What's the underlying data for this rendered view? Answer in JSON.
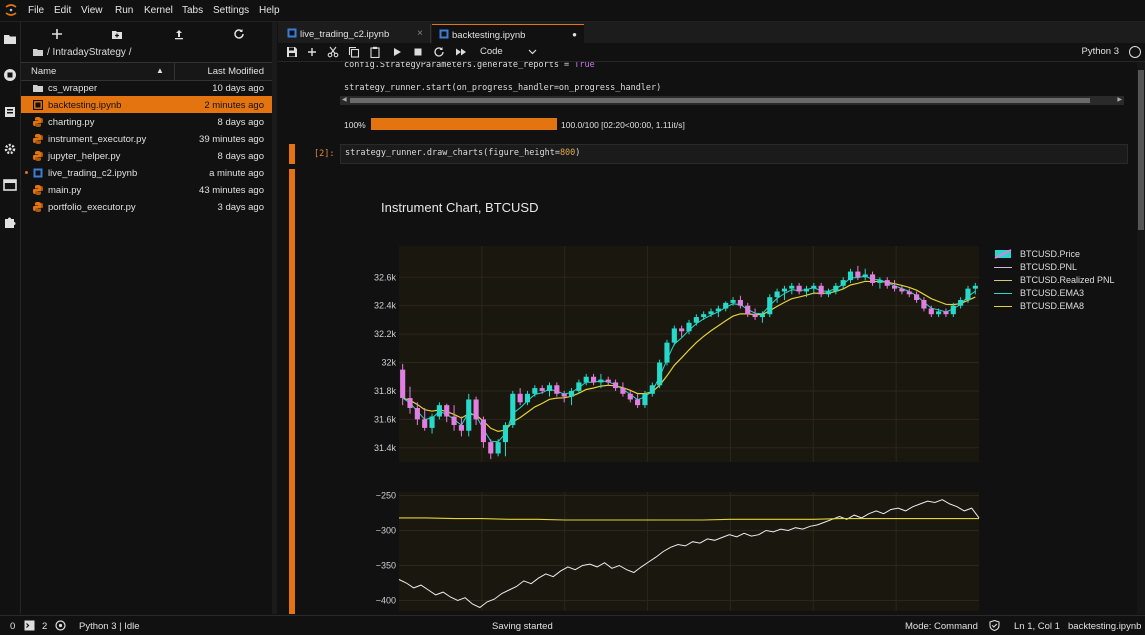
{
  "menubar": {
    "items": [
      "File",
      "Edit",
      "View",
      "Run",
      "Kernel",
      "Tabs",
      "Settings",
      "Help"
    ]
  },
  "activity_icons": [
    "folder-icon",
    "running-icon",
    "commands-icon",
    "property-inspector-icon",
    "tabs-icon",
    "extension-icon"
  ],
  "filebrowser": {
    "breadcrumb": "/ IntradayStrategy /",
    "col_name": "Name",
    "col_modified": "Last Modified",
    "files": [
      {
        "name": "cs_wrapper",
        "modified": "10 days ago",
        "kind": "folder"
      },
      {
        "name": "backtesting.ipynb",
        "modified": "2 minutes ago",
        "kind": "notebook",
        "selected": true
      },
      {
        "name": "charting.py",
        "modified": "8 days ago",
        "kind": "python"
      },
      {
        "name": "instrument_executor.py",
        "modified": "39 minutes ago",
        "kind": "python"
      },
      {
        "name": "jupyter_helper.py",
        "modified": "8 days ago",
        "kind": "python"
      },
      {
        "name": "live_trading_c2.ipynb",
        "modified": "a minute ago",
        "kind": "notebook",
        "running": true
      },
      {
        "name": "main.py",
        "modified": "43 minutes ago",
        "kind": "python"
      },
      {
        "name": "portfolio_executor.py",
        "modified": "3 days ago",
        "kind": "python"
      }
    ]
  },
  "tabs": [
    {
      "label": "live_trading_c2.ipynb",
      "close": "×",
      "active": false
    },
    {
      "label": "backtesting.ipynb",
      "close": "●",
      "active": true
    }
  ],
  "toolbar": {
    "cell_type": "Code",
    "kernel": "Python 3"
  },
  "cell1": {
    "line1_pre": "config.StrategyParameters.generate_reports = ",
    "line1_kw": "True",
    "line2": "strategy_runner.start(on_progress_handler=on_progress_handler)"
  },
  "progress": {
    "percent_label": "100%",
    "fraction": 1.0,
    "text": "100.0/100 [02:20<00:00,  1.11it/s]"
  },
  "cell2": {
    "prompt": "[2]:",
    "code_pre": "strategy_runner.draw_charts(figure_height=",
    "code_num": "800",
    "code_post": ")"
  },
  "chart_data": {
    "type": "line",
    "title": "Instrument Chart, BTCUSD",
    "panels": [
      {
        "name": "price",
        "yticks": [
          "32.6k",
          "32.4k",
          "32.2k",
          "32k",
          "31.8k",
          "31.6k",
          "31.4k"
        ],
        "ytick_values": [
          32600,
          32400,
          32200,
          32000,
          31800,
          31600,
          31400
        ],
        "ylim": [
          31300,
          32820
        ],
        "candles_ohlc": [
          [
            31950,
            31990,
            31700,
            31750
          ],
          [
            31750,
            31830,
            31640,
            31680
          ],
          [
            31680,
            31720,
            31560,
            31600
          ],
          [
            31600,
            31680,
            31520,
            31540
          ],
          [
            31540,
            31640,
            31500,
            31620
          ],
          [
            31620,
            31720,
            31600,
            31700
          ],
          [
            31700,
            31710,
            31580,
            31620
          ],
          [
            31620,
            31700,
            31520,
            31560
          ],
          [
            31560,
            31620,
            31480,
            31520
          ],
          [
            31520,
            31780,
            31480,
            31740
          ],
          [
            31740,
            31760,
            31560,
            31600
          ],
          [
            31600,
            31620,
            31400,
            31440
          ],
          [
            31440,
            31460,
            31320,
            31360
          ],
          [
            31360,
            31460,
            31340,
            31440
          ],
          [
            31440,
            31580,
            31340,
            31560
          ],
          [
            31560,
            31800,
            31540,
            31780
          ],
          [
            31780,
            31820,
            31700,
            31720
          ],
          [
            31720,
            31800,
            31700,
            31780
          ],
          [
            31780,
            31840,
            31760,
            31820
          ],
          [
            31820,
            31840,
            31780,
            31800
          ],
          [
            31800,
            31860,
            31760,
            31840
          ],
          [
            31840,
            31860,
            31760,
            31780
          ],
          [
            31780,
            31800,
            31720,
            31760
          ],
          [
            31760,
            31820,
            31700,
            31800
          ],
          [
            31800,
            31880,
            31780,
            31860
          ],
          [
            31860,
            31920,
            31840,
            31900
          ],
          [
            31900,
            31920,
            31840,
            31860
          ],
          [
            31860,
            31920,
            31820,
            31880
          ],
          [
            31880,
            31900,
            31840,
            31860
          ],
          [
            31860,
            31880,
            31800,
            31820
          ],
          [
            31820,
            31860,
            31760,
            31780
          ],
          [
            31780,
            31800,
            31720,
            31740
          ],
          [
            31740,
            31780,
            31680,
            31700
          ],
          [
            31700,
            31800,
            31680,
            31780
          ],
          [
            31780,
            31860,
            31760,
            31840
          ],
          [
            31840,
            32020,
            31820,
            32000
          ],
          [
            32000,
            32160,
            31980,
            32140
          ],
          [
            32140,
            32260,
            32120,
            32240
          ],
          [
            32240,
            32260,
            32180,
            32220
          ],
          [
            32220,
            32300,
            32200,
            32280
          ],
          [
            32280,
            32340,
            32260,
            32320
          ],
          [
            32320,
            32360,
            32300,
            32340
          ],
          [
            32340,
            32380,
            32320,
            32360
          ],
          [
            32360,
            32400,
            32320,
            32380
          ],
          [
            32380,
            32430,
            32360,
            32420
          ],
          [
            32420,
            32460,
            32400,
            32440
          ],
          [
            32440,
            32470,
            32380,
            32400
          ],
          [
            32400,
            32420,
            32320,
            32340
          ],
          [
            32340,
            32380,
            32300,
            32320
          ],
          [
            32320,
            32360,
            32280,
            32340
          ],
          [
            32340,
            32480,
            32320,
            32460
          ],
          [
            32460,
            32520,
            32420,
            32500
          ],
          [
            32500,
            32540,
            32440,
            32520
          ],
          [
            32520,
            32560,
            32480,
            32540
          ],
          [
            32540,
            32560,
            32480,
            32500
          ],
          [
            32500,
            32540,
            32460,
            32520
          ],
          [
            32520,
            32560,
            32480,
            32540
          ],
          [
            32540,
            32560,
            32460,
            32480
          ],
          [
            32480,
            32520,
            32460,
            32500
          ],
          [
            32500,
            32560,
            32480,
            32540
          ],
          [
            32540,
            32600,
            32520,
            32580
          ],
          [
            32580,
            32660,
            32560,
            32640
          ],
          [
            32640,
            32680,
            32580,
            32600
          ],
          [
            32600,
            32660,
            32580,
            32620
          ],
          [
            32620,
            32640,
            32540,
            32560
          ],
          [
            32560,
            32600,
            32520,
            32580
          ],
          [
            32580,
            32600,
            32520,
            32540
          ],
          [
            32540,
            32580,
            32500,
            32520
          ],
          [
            32520,
            32540,
            32480,
            32500
          ],
          [
            32500,
            32520,
            32460,
            32480
          ],
          [
            32480,
            32500,
            32420,
            32440
          ],
          [
            32440,
            32460,
            32360,
            32380
          ],
          [
            32380,
            32400,
            32320,
            32340
          ],
          [
            32340,
            32380,
            32320,
            32360
          ],
          [
            32360,
            32380,
            32320,
            32340
          ],
          [
            32340,
            32420,
            32320,
            32400
          ],
          [
            32400,
            32460,
            32380,
            32440
          ],
          [
            32440,
            32540,
            32420,
            32520
          ],
          [
            32520,
            32560,
            32480,
            32540
          ]
        ],
        "series": [
          {
            "name": "BTCUSD.Price",
            "color": "#27d9c8",
            "legend_swatch": "candle"
          },
          {
            "name": "BTCUSD.PNL",
            "color": "#d8b4e2"
          },
          {
            "name": "BTCUSD.Realized PNL",
            "color": "#cfc97e"
          },
          {
            "name": "BTCUSD.EMA3",
            "color": "#27d9c8"
          },
          {
            "name": "BTCUSD.EMA8",
            "color": "#e3d23a"
          }
        ]
      },
      {
        "name": "pnl",
        "yticks": [
          "−250",
          "−300",
          "−350",
          "−400"
        ],
        "ytick_values": [
          -250,
          -300,
          -350,
          -400
        ],
        "ylim": [
          -415,
          -245
        ],
        "pnl_values": [
          -370,
          -375,
          -382,
          -378,
          -385,
          -392,
          -388,
          -395,
          -400,
          -396,
          -405,
          -410,
          -402,
          -398,
          -390,
          -385,
          -380,
          -372,
          -376,
          -368,
          -362,
          -366,
          -358,
          -352,
          -356,
          -350,
          -348,
          -352,
          -346,
          -354,
          -350,
          -356,
          -360,
          -352,
          -345,
          -338,
          -330,
          -324,
          -320,
          -322,
          -316,
          -318,
          -312,
          -314,
          -310,
          -306,
          -309,
          -304,
          -308,
          -306,
          -300,
          -302,
          -298,
          -300,
          -296,
          -298,
          -294,
          -292,
          -288,
          -284,
          -280,
          -284,
          -278,
          -282,
          -276,
          -272,
          -276,
          -270,
          -268,
          -272,
          -266,
          -262,
          -258,
          -260,
          -256,
          -262,
          -266,
          -272,
          -268,
          -282
        ],
        "realized_values": [
          -282,
          -282,
          -283,
          -283,
          -284,
          -284,
          -285,
          -285,
          -285,
          -285,
          -285,
          -285,
          -284,
          -284,
          -284,
          -284,
          -283,
          -283,
          -283,
          -283,
          -283,
          -283
        ]
      }
    ]
  },
  "statusbar": {
    "left_count": "0",
    "terminal_count": "2",
    "kernel_status": "Python 3 | Idle",
    "center": "Saving started",
    "mode": "Mode: Command",
    "position": "Ln 1, Col 1",
    "filename": "backtesting.ipynb"
  },
  "colors": {
    "accent": "#e4740f",
    "candle_up": "#27d9c8",
    "candle_down": "#e07fe0",
    "plot_bg": "#1a170f"
  }
}
